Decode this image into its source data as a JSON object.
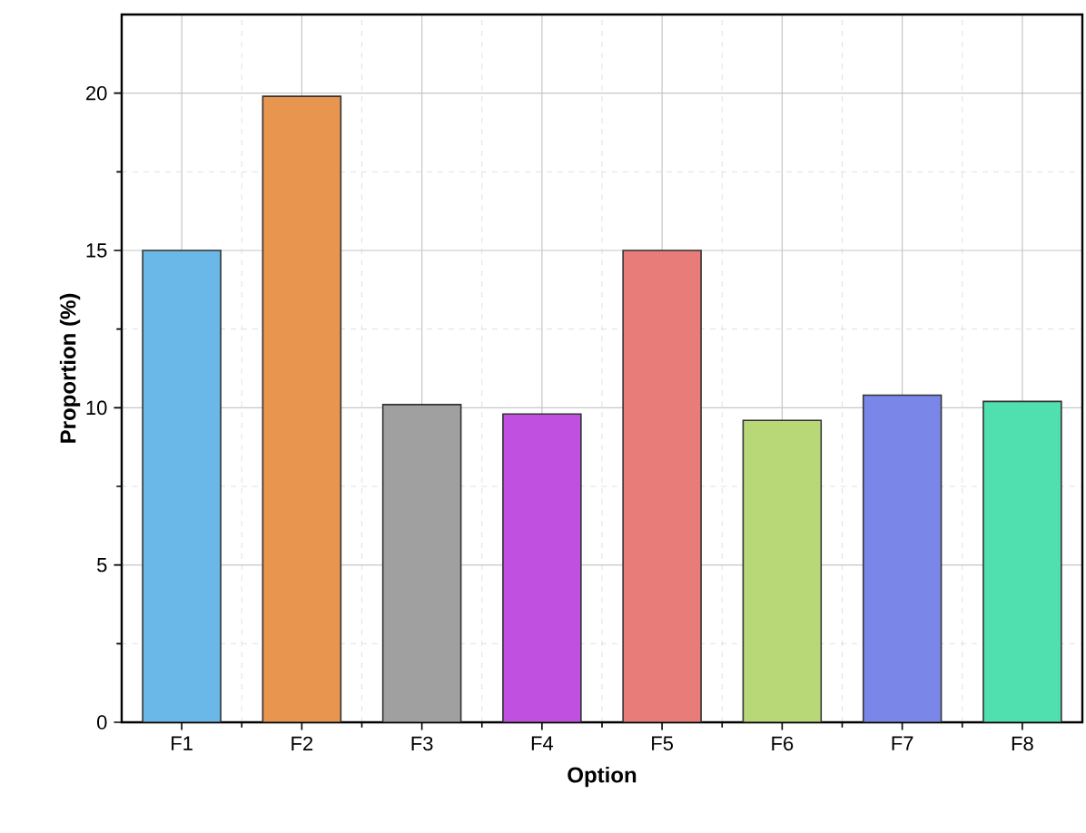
{
  "chart_data": {
    "type": "bar",
    "xlabel": "Option",
    "ylabel": "Proportion (%)",
    "categories": [
      "F1",
      "F2",
      "F3",
      "F4",
      "F5",
      "F6",
      "F7",
      "F8"
    ],
    "values": [
      15.0,
      19.9,
      10.1,
      9.8,
      15.0,
      9.6,
      10.4,
      10.2
    ],
    "colors": [
      "#6ab8e8",
      "#e8954f",
      "#a0a0a0",
      "#c050e0",
      "#e87c78",
      "#b8d878",
      "#7a86e8",
      "#50e0b0"
    ],
    "ylim": [
      0,
      22.5
    ],
    "yticks": [
      0,
      5,
      10,
      15,
      20
    ],
    "grid": true
  }
}
